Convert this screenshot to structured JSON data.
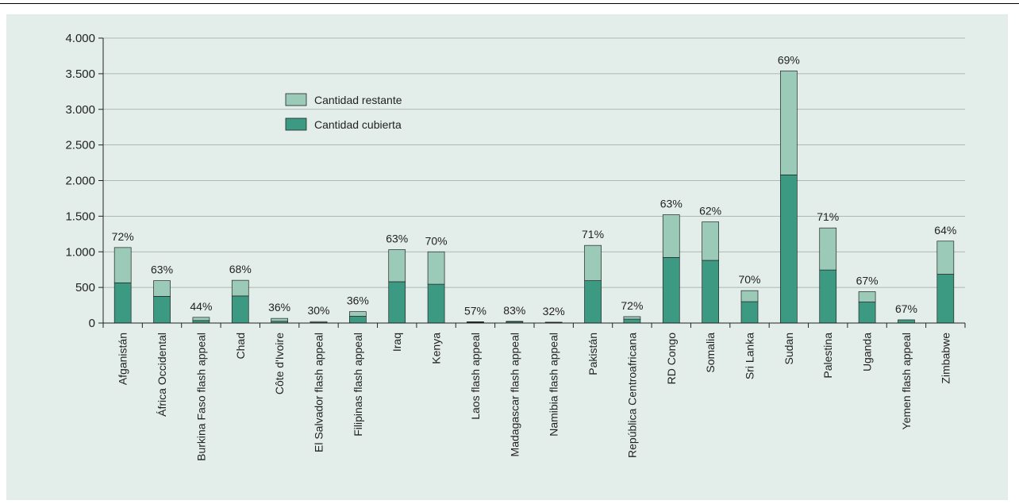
{
  "colors": {
    "panel_bg": "#e3eeea",
    "covered": "#3d9a82",
    "remaining": "#9ccab9",
    "grid": "#9aa6a2",
    "axis": "#222222"
  },
  "legend": {
    "remaining_label": "Cantidad restante",
    "covered_label": "Cantidad cubierta"
  },
  "chart_data": {
    "type": "bar",
    "stacked": true,
    "title": "",
    "xlabel": "",
    "ylabel": "",
    "ylim": [
      0,
      4000
    ],
    "yticks": [
      0,
      500,
      1000,
      1500,
      2000,
      2500,
      3000,
      3500,
      4000
    ],
    "ytick_labels": [
      "0",
      "500",
      "1.000",
      "1.500",
      "2.000",
      "2.500",
      "3.000",
      "3.500",
      "4.000"
    ],
    "grid": true,
    "legend_position": "top-center",
    "categories": [
      "Afganistán",
      "África Occidental",
      "Burkina Faso flash appeal",
      "Chad",
      "Côte d'Ivoire",
      "El Salvador flash appeal",
      "Filipinas flash appeal",
      "Iraq",
      "Kenya",
      "Laos flash appeal",
      "Madagascar flash appeal",
      "Namibia flash appeal",
      "Pakistán",
      "República Centroafricana",
      "RD Congo",
      "Somalia",
      "Sri Lanka",
      "Sudan",
      "Palestina",
      "Uganda",
      "Yemen flash appeal",
      "Zimbabwe"
    ],
    "series": [
      {
        "name": "Cantidad cubierta",
        "values": [
          565,
          375,
          35,
          380,
          25,
          6,
          95,
          580,
          545,
          10,
          20,
          4,
          595,
          55,
          920,
          880,
          300,
          2080,
          745,
          295,
          45,
          685
        ]
      },
      {
        "name": "Cantidad restante",
        "values": [
          495,
          220,
          45,
          220,
          40,
          14,
          65,
          450,
          455,
          8,
          4,
          8,
          495,
          35,
          600,
          540,
          155,
          1460,
          590,
          145,
          0,
          465
        ]
      }
    ],
    "data_labels": [
      "72%",
      "63%",
      "44%",
      "68%",
      "36%",
      "30%",
      "36%",
      "63%",
      "70%",
      "57%",
      "83%",
      "32%",
      "71%",
      "72%",
      "63%",
      "62%",
      "70%",
      "69%",
      "71%",
      "67%",
      "67%",
      "64%"
    ]
  }
}
